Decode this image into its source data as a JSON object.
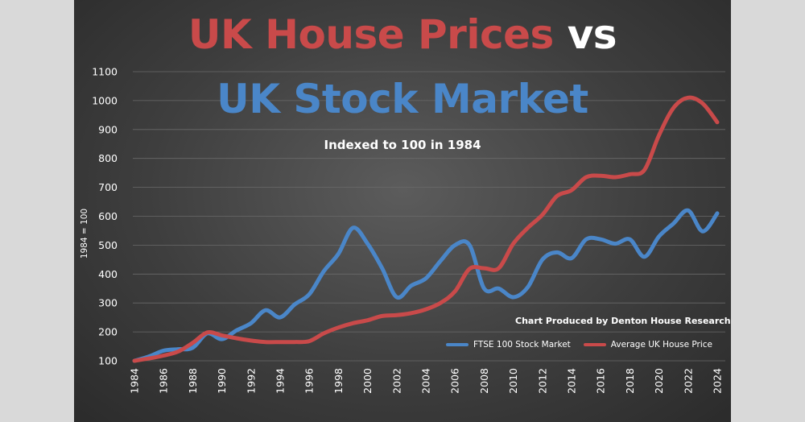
{
  "title": {
    "part1": "UK House Prices",
    "part2": "vs",
    "line2": "UK Stock Market"
  },
  "subtitle": "Indexed to 100 in 1984",
  "credit": "Chart Produced by Denton House Research",
  "colors": {
    "ftse": "#4a86c8",
    "house": "#c94a4a",
    "grid": "#6a6a6a",
    "text": "#ffffff"
  },
  "chart_data": {
    "type": "line",
    "title": "UK House Prices vs UK Stock Market",
    "subtitle": "Indexed to 100 in 1984",
    "xlabel": "",
    "ylabel": "1984 = 100",
    "ylim": [
      100,
      1100
    ],
    "yticks": [
      100,
      200,
      300,
      400,
      500,
      600,
      700,
      800,
      900,
      1000,
      1100
    ],
    "xticks": [
      1984,
      1986,
      1988,
      1990,
      1992,
      1994,
      1996,
      1998,
      2000,
      2002,
      2004,
      2006,
      2008,
      2010,
      2012,
      2014,
      2016,
      2018,
      2020,
      2022,
      2024
    ],
    "grid": true,
    "legend_position": "bottom-right",
    "x": [
      1984,
      1985,
      1986,
      1987,
      1988,
      1989,
      1990,
      1991,
      1992,
      1993,
      1994,
      1995,
      1996,
      1997,
      1998,
      1999,
      2000,
      2001,
      2002,
      2003,
      2004,
      2005,
      2006,
      2007,
      2008,
      2009,
      2010,
      2011,
      2012,
      2013,
      2014,
      2015,
      2016,
      2017,
      2018,
      2019,
      2020,
      2021,
      2022,
      2023,
      2024
    ],
    "series": [
      {
        "name": "FTSE 100 Stock Market",
        "values": [
          100,
          115,
          135,
          140,
          145,
          195,
          175,
          205,
          230,
          275,
          250,
          295,
          330,
          410,
          470,
          560,
          505,
          420,
          320,
          360,
          385,
          445,
          500,
          500,
          350,
          350,
          320,
          355,
          450,
          475,
          455,
          520,
          520,
          505,
          520,
          460,
          530,
          575,
          620,
          548,
          610
        ]
      },
      {
        "name": "Average UK House Price",
        "values": [
          100,
          108,
          118,
          132,
          162,
          198,
          188,
          178,
          170,
          165,
          165,
          165,
          168,
          195,
          215,
          230,
          240,
          255,
          258,
          265,
          278,
          300,
          340,
          418,
          420,
          420,
          505,
          560,
          605,
          670,
          690,
          735,
          740,
          735,
          745,
          760,
          880,
          975,
          1010,
          990,
          925
        ]
      }
    ]
  }
}
